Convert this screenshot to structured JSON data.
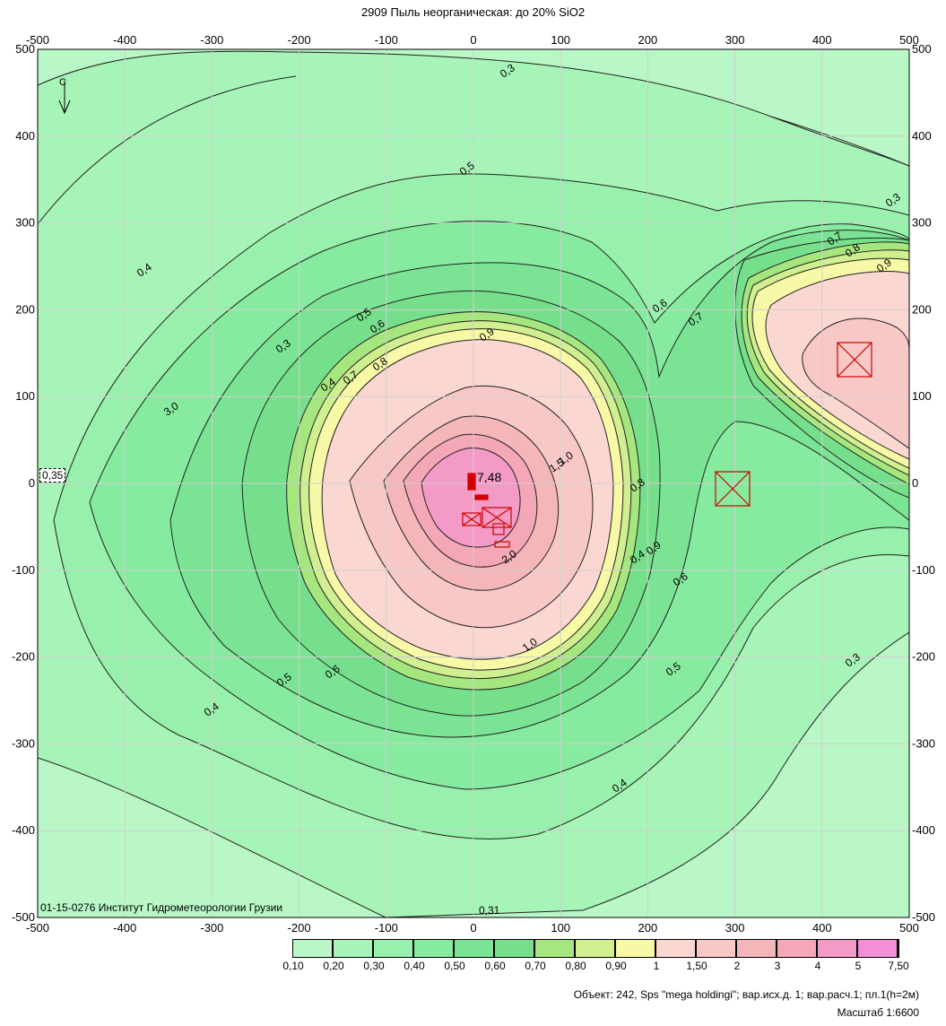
{
  "title": "2909 Пыль неорганическая: до 20% SiO2",
  "x_ticks": [
    "-500",
    "-400",
    "-300",
    "-200",
    "-100",
    "0",
    "100",
    "200",
    "300",
    "400",
    "500"
  ],
  "y_ticks": [
    "500",
    "400",
    "300",
    "200",
    "100",
    "0",
    "-100",
    "-200",
    "-300",
    "-400",
    "-500"
  ],
  "institute_label": "01-15-0276 Институт Гидрометеорологии Грузии",
  "max_value_label": "7,48",
  "edge_value_left": "0,35",
  "edge_value_bottom": "0,31",
  "north_label": "С",
  "contour_labels": [
    "0,3",
    "0,4",
    "0,5",
    "0,6",
    "0,7",
    "0,8",
    "0,9",
    "1,0",
    "1,5",
    "2,0",
    "3,0",
    "0,3",
    "0,4",
    "0,5",
    "0,6",
    "0,7",
    "0,8",
    "0,9",
    "0,4",
    "0,3",
    "0,5",
    "0,6",
    "0,7",
    "0,8",
    "0,9",
    "1,0",
    "0,6",
    "0,5",
    "0,4",
    "0,3",
    "0,4"
  ],
  "legend": {
    "labels": [
      "0,10",
      "0,20",
      "0,30",
      "0,40",
      "0,50",
      "0,60",
      "0,70",
      "0,80",
      "0,90",
      "1",
      "1,50",
      "2",
      "3",
      "4",
      "5",
      "7,50"
    ],
    "colors": [
      "#b9f7c6",
      "#a7f4b8",
      "#97f0ab",
      "#86eb9f",
      "#7ae494",
      "#76df8c",
      "#a6e67e",
      "#cfef90",
      "#f7f9a6",
      "#fbd7d1",
      "#f8c8c6",
      "#f5b6ba",
      "#f4a7b6",
      "#f49ac6",
      "#f38ed8"
    ]
  },
  "footer": {
    "object_line": "Объект: 242, Sps \"mega holdingi\"; вар.исх.д. 1; вар.расч.1; пл.1(h=2м)",
    "scale_line": "Масштаб 1:6600"
  }
}
